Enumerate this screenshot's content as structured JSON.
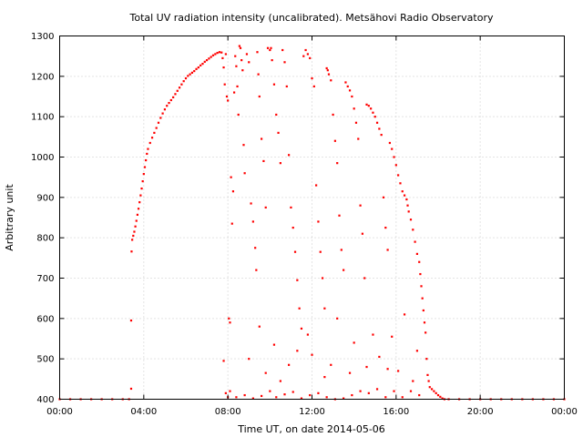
{
  "chart_data": {
    "type": "scatter",
    "title": "Total UV radiation intensity (uncalibrated). Metsähovi Radio Observatory",
    "xlabel": "Time UT, on date 2014-05-06",
    "ylabel": "Arbitrary unit",
    "xlim": [
      0,
      24
    ],
    "ylim": [
      400,
      1300
    ],
    "x_ticks": [
      {
        "value": 0,
        "label": "00:00"
      },
      {
        "value": 4,
        "label": "04:00"
      },
      {
        "value": 8,
        "label": "08:00"
      },
      {
        "value": 12,
        "label": "12:00"
      },
      {
        "value": 16,
        "label": "16:00"
      },
      {
        "value": 20,
        "label": "20:00"
      },
      {
        "value": 24,
        "label": "00:00"
      }
    ],
    "y_ticks": [
      {
        "value": 400,
        "label": "400"
      },
      {
        "value": 500,
        "label": "500"
      },
      {
        "value": 600,
        "label": "600"
      },
      {
        "value": 700,
        "label": "700"
      },
      {
        "value": 800,
        "label": "800"
      },
      {
        "value": 900,
        "label": "900"
      },
      {
        "value": 1000,
        "label": "1000"
      },
      {
        "value": 1100,
        "label": "1100"
      },
      {
        "value": 1200,
        "label": "1200"
      },
      {
        "value": 1300,
        "label": "1300"
      }
    ],
    "grid": true,
    "series": [
      {
        "color": "#ff0000",
        "points": [
          [
            0.0,
            400
          ],
          [
            0.5,
            400
          ],
          [
            1.0,
            400
          ],
          [
            1.5,
            400
          ],
          [
            2.0,
            400
          ],
          [
            2.5,
            400
          ],
          [
            3.0,
            400
          ],
          [
            3.3,
            400
          ],
          [
            3.4,
            426
          ],
          [
            3.4,
            595
          ],
          [
            3.42,
            766
          ],
          [
            3.45,
            795
          ],
          [
            3.5,
            805
          ],
          [
            3.55,
            815
          ],
          [
            3.6,
            828
          ],
          [
            3.65,
            842
          ],
          [
            3.7,
            857
          ],
          [
            3.75,
            872
          ],
          [
            3.8,
            888
          ],
          [
            3.85,
            905
          ],
          [
            3.9,
            922
          ],
          [
            3.95,
            940
          ],
          [
            4.0,
            958
          ],
          [
            4.05,
            975
          ],
          [
            4.1,
            992
          ],
          [
            4.15,
            1008
          ],
          [
            4.2,
            1020
          ],
          [
            4.3,
            1035
          ],
          [
            4.4,
            1048
          ],
          [
            4.5,
            1060
          ],
          [
            4.6,
            1072
          ],
          [
            4.7,
            1085
          ],
          [
            4.8,
            1097
          ],
          [
            4.9,
            1108
          ],
          [
            5.0,
            1118
          ],
          [
            5.1,
            1127
          ],
          [
            5.2,
            1134
          ],
          [
            5.3,
            1141
          ],
          [
            5.4,
            1148
          ],
          [
            5.5,
            1156
          ],
          [
            5.6,
            1164
          ],
          [
            5.7,
            1172
          ],
          [
            5.8,
            1180
          ],
          [
            5.9,
            1188
          ],
          [
            6.0,
            1195
          ],
          [
            6.1,
            1201
          ],
          [
            6.2,
            1205
          ],
          [
            6.3,
            1209
          ],
          [
            6.4,
            1213
          ],
          [
            6.5,
            1218
          ],
          [
            6.6,
            1222
          ],
          [
            6.7,
            1227
          ],
          [
            6.8,
            1231
          ],
          [
            6.9,
            1236
          ],
          [
            7.0,
            1240
          ],
          [
            7.1,
            1244
          ],
          [
            7.2,
            1248
          ],
          [
            7.3,
            1252
          ],
          [
            7.4,
            1255
          ],
          [
            7.5,
            1258
          ],
          [
            7.6,
            1260
          ],
          [
            7.7,
            1259
          ],
          [
            7.75,
            1245
          ],
          [
            7.8,
            1222
          ],
          [
            7.85,
            1180
          ],
          [
            7.9,
            1255
          ],
          [
            7.95,
            1150
          ],
          [
            8.0,
            1140
          ],
          [
            7.8,
            495
          ],
          [
            7.9,
            415
          ],
          [
            8.0,
            405
          ],
          [
            8.05,
            600
          ],
          [
            8.1,
            590
          ],
          [
            8.15,
            950
          ],
          [
            8.2,
            835
          ],
          [
            8.25,
            915
          ],
          [
            8.3,
            1160
          ],
          [
            8.35,
            1250
          ],
          [
            8.4,
            1225
          ],
          [
            8.45,
            1175
          ],
          [
            8.5,
            1105
          ],
          [
            8.55,
            1275
          ],
          [
            8.6,
            1270
          ],
          [
            8.65,
            1240
          ],
          [
            8.7,
            1215
          ],
          [
            8.75,
            1030
          ],
          [
            8.8,
            960
          ],
          [
            8.9,
            1255
          ],
          [
            9.0,
            1235
          ],
          [
            9.1,
            885
          ],
          [
            9.2,
            840
          ],
          [
            9.3,
            775
          ],
          [
            9.35,
            720
          ],
          [
            9.4,
            1260
          ],
          [
            9.45,
            1205
          ],
          [
            9.5,
            1150
          ],
          [
            9.6,
            1045
          ],
          [
            9.7,
            990
          ],
          [
            9.8,
            875
          ],
          [
            9.9,
            1270
          ],
          [
            10.0,
            1265
          ],
          [
            10.05,
            1270
          ],
          [
            10.1,
            1240
          ],
          [
            10.2,
            1180
          ],
          [
            10.3,
            1105
          ],
          [
            10.4,
            1060
          ],
          [
            10.5,
            985
          ],
          [
            10.6,
            1265
          ],
          [
            10.7,
            1235
          ],
          [
            10.8,
            1175
          ],
          [
            10.9,
            1005
          ],
          [
            11.0,
            875
          ],
          [
            11.1,
            825
          ],
          [
            11.2,
            765
          ],
          [
            11.3,
            695
          ],
          [
            11.4,
            625
          ],
          [
            11.5,
            575
          ],
          [
            11.6,
            1250
          ],
          [
            11.7,
            1265
          ],
          [
            11.8,
            1255
          ],
          [
            11.9,
            1245
          ],
          [
            12.0,
            1195
          ],
          [
            12.1,
            1175
          ],
          [
            12.2,
            930
          ],
          [
            12.3,
            840
          ],
          [
            12.4,
            765
          ],
          [
            12.5,
            700
          ],
          [
            12.6,
            625
          ],
          [
            12.7,
            1220
          ],
          [
            12.75,
            1215
          ],
          [
            12.8,
            1205
          ],
          [
            12.9,
            1190
          ],
          [
            13.0,
            1105
          ],
          [
            13.1,
            1040
          ],
          [
            13.2,
            985
          ],
          [
            13.3,
            855
          ],
          [
            13.4,
            770
          ],
          [
            13.5,
            720
          ],
          [
            13.6,
            1185
          ],
          [
            13.7,
            1175
          ],
          [
            13.8,
            1165
          ],
          [
            13.9,
            1150
          ],
          [
            14.0,
            1120
          ],
          [
            14.1,
            1085
          ],
          [
            14.2,
            1045
          ],
          [
            14.3,
            880
          ],
          [
            14.4,
            810
          ],
          [
            14.5,
            700
          ],
          [
            14.6,
            1130
          ],
          [
            14.7,
            1127
          ],
          [
            14.8,
            1120
          ],
          [
            14.9,
            1110
          ],
          [
            15.0,
            1100
          ],
          [
            15.1,
            1085
          ],
          [
            15.2,
            1070
          ],
          [
            15.3,
            1055
          ],
          [
            15.4,
            900
          ],
          [
            15.5,
            825
          ],
          [
            15.6,
            770
          ],
          [
            15.7,
            1035
          ],
          [
            15.8,
            1020
          ],
          [
            15.9,
            1000
          ],
          [
            16.0,
            980
          ],
          [
            16.1,
            955
          ],
          [
            16.2,
            935
          ],
          [
            16.3,
            915
          ],
          [
            16.4,
            905
          ],
          [
            16.5,
            895
          ],
          [
            16.55,
            880
          ],
          [
            16.6,
            865
          ],
          [
            16.7,
            845
          ],
          [
            16.8,
            820
          ],
          [
            16.9,
            790
          ],
          [
            17.0,
            760
          ],
          [
            17.1,
            740
          ],
          [
            17.15,
            710
          ],
          [
            17.2,
            680
          ],
          [
            17.25,
            650
          ],
          [
            17.3,
            620
          ],
          [
            17.35,
            590
          ],
          [
            17.4,
            565
          ],
          [
            17.45,
            500
          ],
          [
            17.5,
            460
          ],
          [
            17.55,
            445
          ],
          [
            17.6,
            430
          ],
          [
            17.7,
            425
          ],
          [
            17.8,
            420
          ],
          [
            17.9,
            415
          ],
          [
            18.0,
            410
          ],
          [
            18.1,
            406
          ],
          [
            18.2,
            402
          ],
          [
            18.3,
            400
          ],
          [
            18.5,
            400
          ],
          [
            19.0,
            400
          ],
          [
            19.5,
            400
          ],
          [
            20.0,
            400
          ],
          [
            20.5,
            400
          ],
          [
            21.0,
            400
          ],
          [
            21.5,
            400
          ],
          [
            22.0,
            400
          ],
          [
            22.5,
            400
          ],
          [
            23.0,
            400
          ],
          [
            23.5,
            400
          ],
          [
            24.0,
            400
          ],
          [
            8.1,
            420
          ],
          [
            8.4,
            405
          ],
          [
            8.8,
            410
          ],
          [
            9.2,
            402
          ],
          [
            9.6,
            408
          ],
          [
            10.0,
            420
          ],
          [
            10.3,
            405
          ],
          [
            10.7,
            412
          ],
          [
            11.1,
            418
          ],
          [
            11.5,
            402
          ],
          [
            11.9,
            410
          ],
          [
            12.3,
            415
          ],
          [
            12.7,
            405
          ],
          [
            13.1,
            400
          ],
          [
            13.5,
            402
          ],
          [
            13.9,
            410
          ],
          [
            14.3,
            420
          ],
          [
            14.7,
            415
          ],
          [
            15.1,
            425
          ],
          [
            15.5,
            405
          ],
          [
            15.9,
            420
          ],
          [
            16.3,
            405
          ],
          [
            16.7,
            420
          ],
          [
            17.1,
            410
          ],
          [
            9.8,
            465
          ],
          [
            10.5,
            445
          ],
          [
            11.3,
            520
          ],
          [
            12.0,
            510
          ],
          [
            12.9,
            485
          ],
          [
            13.8,
            465
          ],
          [
            14.6,
            480
          ],
          [
            15.2,
            505
          ],
          [
            16.1,
            470
          ],
          [
            16.8,
            445
          ],
          [
            9.5,
            580
          ],
          [
            10.2,
            535
          ],
          [
            11.8,
            560
          ],
          [
            13.2,
            600
          ],
          [
            14.9,
            560
          ],
          [
            15.8,
            555
          ],
          [
            16.4,
            610
          ],
          [
            9.0,
            500
          ],
          [
            10.9,
            485
          ],
          [
            12.6,
            455
          ],
          [
            14.0,
            540
          ],
          [
            15.6,
            475
          ],
          [
            17.0,
            520
          ]
        ]
      }
    ]
  }
}
